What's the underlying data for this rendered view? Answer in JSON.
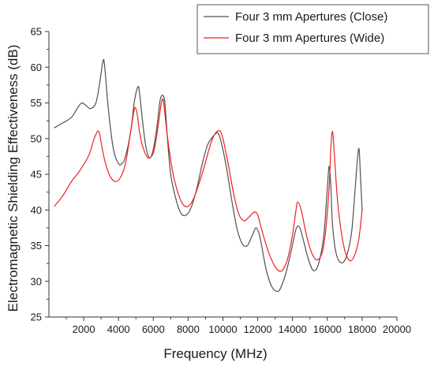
{
  "chart_data": {
    "type": "line",
    "xlabel": "Frequency (MHz)",
    "ylabel": "Electromagnetic Shielding Effectiveness (dB)",
    "xlim": [
      0,
      20000
    ],
    "ylim": [
      25,
      65
    ],
    "x_ticks": [
      "2000",
      "4000",
      "6000",
      "8000",
      "10000",
      "12000",
      "14000",
      "16000",
      "18000",
      "20000"
    ],
    "y_ticks": [
      "25",
      "30",
      "35",
      "40",
      "45",
      "50",
      "55",
      "60",
      "65"
    ],
    "grid": false,
    "legend_position": "top-right",
    "series": [
      {
        "name": "Four 3 mm Apertures (Close)",
        "color": "#505050",
        "x": [
          300,
          800,
          1300,
          1700,
          1900,
          2100,
          2400,
          2700,
          2900,
          3100,
          3200,
          3400,
          3700,
          4000,
          4200,
          4400,
          4700,
          4900,
          5100,
          5200,
          5400,
          5600,
          5800,
          6000,
          6200,
          6400,
          6600,
          6700,
          6800,
          7000,
          7300,
          7600,
          7900,
          8200,
          8500,
          8800,
          9100,
          9400,
          9700,
          9900,
          10200,
          10500,
          10800,
          11100,
          11400,
          11700,
          11900,
          12100,
          12300,
          12500,
          12800,
          13100,
          13300,
          13600,
          13900,
          14200,
          14400,
          14600,
          14900,
          15200,
          15500,
          15800,
          16000,
          16100,
          16200,
          16300,
          16500,
          16800,
          17100,
          17400,
          17600,
          17800,
          17900,
          18000
        ],
        "y": [
          51.5,
          52.2,
          53,
          54.5,
          55,
          54.7,
          54.2,
          55,
          57.5,
          60.8,
          60.2,
          54.5,
          48.6,
          46.5,
          46.5,
          47.5,
          51,
          55,
          57.2,
          56.5,
          52,
          48.5,
          47.3,
          48.5,
          51.5,
          55.5,
          55.9,
          54,
          50.5,
          45,
          41.5,
          39.5,
          39.3,
          40.5,
          43,
          46.3,
          49,
          50.2,
          50.8,
          49.5,
          46,
          41.5,
          37.5,
          35.3,
          35,
          36.5,
          37.5,
          36.5,
          34,
          31.5,
          29.3,
          28.6,
          29,
          31,
          34,
          37.3,
          37.6,
          36,
          33.2,
          31.5,
          32.5,
          36.5,
          43,
          46.1,
          43.5,
          38,
          34,
          32.6,
          33.5,
          37,
          43,
          48.6,
          45,
          40
        ]
      },
      {
        "name": "Four 3 mm Apertures (Wide)",
        "color": "#ee2020",
        "x": [
          300,
          800,
          1300,
          1800,
          2300,
          2600,
          2800,
          2900,
          3000,
          3200,
          3500,
          3800,
          4100,
          4400,
          4700,
          4900,
          5000,
          5100,
          5200,
          5400,
          5700,
          6000,
          6200,
          6400,
          6500,
          6600,
          6800,
          7100,
          7400,
          7700,
          8000,
          8300,
          8600,
          8900,
          9200,
          9500,
          9800,
          10000,
          10300,
          10600,
          10900,
          11200,
          11500,
          11800,
          12000,
          12200,
          12500,
          12800,
          13100,
          13400,
          13700,
          14000,
          14200,
          14300,
          14500,
          14800,
          15100,
          15400,
          15700,
          15900,
          16100,
          16200,
          16300,
          16400,
          16600,
          16900,
          17200,
          17500,
          17800,
          18000
        ],
        "y": [
          40.5,
          42,
          44,
          45.6,
          47.7,
          50,
          51,
          50.8,
          49.5,
          47,
          44.8,
          44,
          44.5,
          46.5,
          51,
          54,
          54.2,
          53,
          51,
          48.8,
          47.3,
          48,
          50.5,
          54,
          55.4,
          55,
          50.5,
          45.5,
          42.5,
          40.8,
          40.5,
          41.5,
          43.5,
          45.8,
          48.5,
          50.5,
          51.1,
          50,
          46.5,
          42.5,
          39.5,
          38.5,
          39,
          39.7,
          39.3,
          37.5,
          35,
          33,
          31.7,
          31.5,
          33,
          36.5,
          40,
          41.1,
          40,
          36.5,
          34,
          33,
          34,
          37,
          43,
          48.5,
          51,
          48,
          41,
          35.5,
          33.1,
          33.3,
          35.8,
          40
        ]
      }
    ]
  }
}
